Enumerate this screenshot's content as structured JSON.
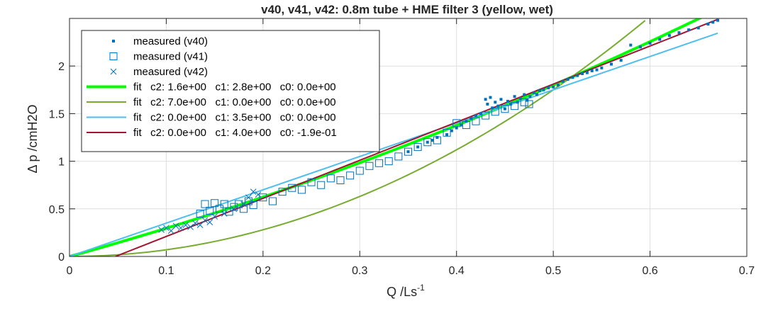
{
  "chart_data": {
    "type": "scatter",
    "title": "v40, v41, v42: 0.8m tube + HME filter 3 (yellow, wet)",
    "xlabel": "Q /Ls",
    "xlabel_sup": "-1",
    "ylabel": "Δ p /cmH2O",
    "xlim": [
      0,
      0.7
    ],
    "ylim": [
      0,
      2.5
    ],
    "xticks": [
      0,
      0.1,
      0.2,
      0.3,
      0.4,
      0.5,
      0.6,
      0.7
    ],
    "xtick_labels": [
      "0",
      "0.1",
      "0.2",
      "0.3",
      "0.4",
      "0.5",
      "0.6",
      "0.7"
    ],
    "yticks": [
      0,
      0.5,
      1,
      1.5,
      2
    ],
    "ytick_labels": [
      "0",
      "0.5",
      "1",
      "1.5",
      "2"
    ],
    "grid": true,
    "legend_position": "top-left",
    "measured": [
      {
        "name": "measured (v40)",
        "marker": "dot",
        "color": "#0072BD",
        "x": [
          0.35,
          0.36,
          0.37,
          0.375,
          0.38,
          0.39,
          0.395,
          0.4,
          0.405,
          0.41,
          0.415,
          0.42,
          0.425,
          0.43,
          0.432,
          0.435,
          0.437,
          0.44,
          0.443,
          0.446,
          0.45,
          0.453,
          0.456,
          0.46,
          0.463,
          0.466,
          0.47,
          0.473,
          0.476,
          0.48,
          0.483,
          0.486,
          0.49,
          0.495,
          0.5,
          0.505,
          0.51,
          0.515,
          0.52,
          0.525,
          0.53,
          0.535,
          0.54,
          0.545,
          0.55,
          0.56,
          0.57,
          0.58,
          0.59,
          0.6,
          0.61,
          0.62,
          0.63,
          0.64,
          0.65,
          0.66,
          0.665,
          0.67
        ],
        "y": [
          1.1,
          1.15,
          1.2,
          1.22,
          1.25,
          1.28,
          1.32,
          1.35,
          1.38,
          1.42,
          1.45,
          1.48,
          1.5,
          1.65,
          1.6,
          1.67,
          1.56,
          1.62,
          1.58,
          1.65,
          1.55,
          1.63,
          1.6,
          1.68,
          1.62,
          1.66,
          1.7,
          1.64,
          1.68,
          1.72,
          1.7,
          1.74,
          1.75,
          1.77,
          1.78,
          1.8,
          1.84,
          1.86,
          1.88,
          1.9,
          1.92,
          1.93,
          1.95,
          1.96,
          1.98,
          2.02,
          2.06,
          2.22,
          2.2,
          2.24,
          2.28,
          2.32,
          2.35,
          2.38,
          2.4,
          2.44,
          2.46,
          2.48
        ]
      },
      {
        "name": "measured (v41)",
        "marker": "square",
        "color": "#0072BD",
        "x": [
          0.135,
          0.14,
          0.145,
          0.15,
          0.155,
          0.16,
          0.165,
          0.17,
          0.175,
          0.18,
          0.185,
          0.19,
          0.2,
          0.21,
          0.22,
          0.23,
          0.24,
          0.25,
          0.26,
          0.27,
          0.28,
          0.29,
          0.3,
          0.31,
          0.32,
          0.33,
          0.34,
          0.35,
          0.36,
          0.37,
          0.38,
          0.39,
          0.4,
          0.41,
          0.42,
          0.43,
          0.44,
          0.45,
          0.46,
          0.47,
          0.475
        ],
        "y": [
          0.45,
          0.55,
          0.48,
          0.56,
          0.5,
          0.55,
          0.47,
          0.52,
          0.55,
          0.5,
          0.58,
          0.54,
          0.62,
          0.58,
          0.68,
          0.72,
          0.7,
          0.78,
          0.75,
          0.82,
          0.8,
          0.85,
          0.9,
          0.95,
          0.98,
          1.0,
          1.05,
          1.1,
          1.15,
          1.2,
          1.22,
          1.3,
          1.4,
          1.38,
          1.42,
          1.48,
          1.52,
          1.55,
          1.58,
          1.62,
          1.6
        ]
      },
      {
        "name": "measured (v42)",
        "marker": "x",
        "color": "#0072BD",
        "x": [
          0.095,
          0.1,
          0.105,
          0.11,
          0.115,
          0.12,
          0.125,
          0.13,
          0.135,
          0.14,
          0.145,
          0.15,
          0.16,
          0.17,
          0.18,
          0.185,
          0.19,
          0.195
        ],
        "y": [
          0.28,
          0.3,
          0.27,
          0.32,
          0.3,
          0.33,
          0.31,
          0.35,
          0.33,
          0.38,
          0.36,
          0.42,
          0.45,
          0.5,
          0.55,
          0.62,
          0.68,
          0.65
        ]
      }
    ],
    "fits": [
      {
        "name": "fit   c2: 1.6e+00   c1: 2.8e+00   c0: 0.0e+00",
        "c2": 1.6,
        "c1": 2.8,
        "c0": 0.0,
        "xmax": 0.655,
        "color": "#00FF00",
        "width": 4
      },
      {
        "name": "fit   c2: 7.0e+00   c1: 0.0e+00   c0: 0.0e+00",
        "c2": 7.0,
        "c1": 0.0,
        "c0": 0.0,
        "xmax": 0.595,
        "color": "#77AC30",
        "width": 2
      },
      {
        "name": "fit   c2: 0.0e+00   c1: 3.5e+00   c0: 0.0e+00",
        "c2": 0.0,
        "c1": 3.5,
        "c0": 0.0,
        "xmax": 0.67,
        "color": "#4DBEEE",
        "width": 2
      },
      {
        "name": "fit   c2: 0.0e+00   c1: 4.0e+00   c0: -1.9e-01",
        "c2": 0.0,
        "c1": 4.0,
        "c0": -0.19,
        "xmax": 0.67,
        "color": "#A2142F",
        "width": 2
      }
    ]
  }
}
